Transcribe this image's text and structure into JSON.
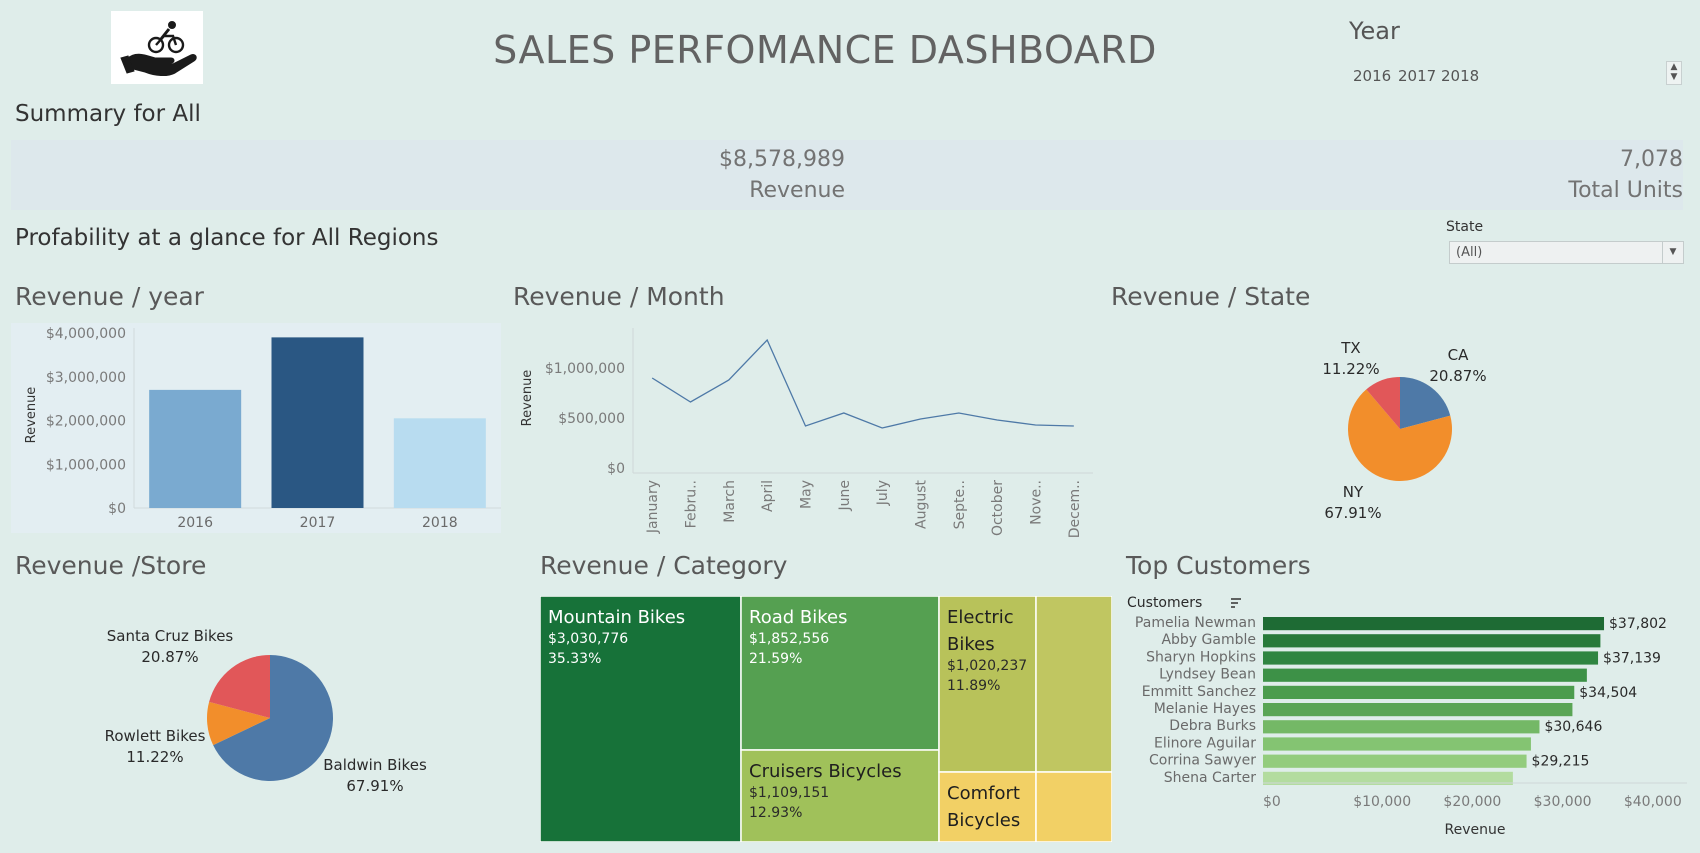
{
  "header": {
    "title": "SALES PERFOMANCE DASHBOARD",
    "year_filter": {
      "label": "Year",
      "options": [
        "2016",
        "2017",
        "2018"
      ]
    }
  },
  "summary": {
    "title": "Summary for  All",
    "revenue_value": "$8,578,989",
    "revenue_label": "Revenue",
    "units_value": "7,078",
    "units_label": "Total Units"
  },
  "profitability": {
    "title": "Profability at a glance for All Regions",
    "state_filter": {
      "label": "State",
      "value": "(All)"
    }
  },
  "colors": {
    "background": "#dfedea",
    "blue_dark": "#2a5783",
    "blue_mid": "#7aaad0",
    "blue_light": "#b8dcf0",
    "pie_blue": "#4e79a7",
    "pie_orange": "#f28e2b",
    "pie_red": "#e15759"
  },
  "chart_data": [
    {
      "id": "revenue-year",
      "type": "bar",
      "title": "Revenue / year",
      "ylabel": "Revenue",
      "categories": [
        "2016",
        "2017",
        "2018"
      ],
      "values": [
        2700000,
        3900000,
        2050000
      ],
      "ylim": [
        0,
        4000000
      ],
      "yticks": [
        0,
        1000000,
        2000000,
        3000000,
        4000000
      ],
      "ytick_labels": [
        "$0",
        "$1,000,000",
        "$2,000,000",
        "$3,000,000",
        "$4,000,000"
      ],
      "colors": [
        "#7aaad0",
        "#2a5783",
        "#b8dcf0"
      ]
    },
    {
      "id": "revenue-month",
      "type": "line",
      "title": "Revenue / Month",
      "ylabel": "Revenue",
      "categories": [
        "January",
        "Febru..",
        "March",
        "April",
        "May",
        "June",
        "July",
        "August",
        "Septe..",
        "October",
        "Nove..",
        "Decem.."
      ],
      "values": [
        900000,
        660000,
        880000,
        1280000,
        420000,
        550000,
        400000,
        490000,
        550000,
        480000,
        430000,
        420000
      ],
      "ylim": [
        -50000,
        1400000
      ],
      "yticks": [
        0,
        500000,
        1000000
      ],
      "ytick_labels": [
        "$0",
        "$500,000",
        "$1,000,000"
      ],
      "color": "#4e79a7"
    },
    {
      "id": "revenue-state",
      "type": "pie",
      "title": "Revenue / State",
      "slices": [
        {
          "label": "CA",
          "pct": "20.87%",
          "value": 20.87,
          "color": "#4e79a7"
        },
        {
          "label": "NY",
          "pct": "67.91%",
          "value": 67.91,
          "color": "#f28e2b"
        },
        {
          "label": "TX",
          "pct": "11.22%",
          "value": 11.22,
          "color": "#e15759"
        }
      ]
    },
    {
      "id": "revenue-store",
      "type": "pie",
      "title": "Revenue /Store",
      "slices": [
        {
          "label": "Baldwin Bikes",
          "pct": "67.91%",
          "value": 67.91,
          "color": "#4e79a7"
        },
        {
          "label": "Rowlett Bikes",
          "pct": "11.22%",
          "value": 11.22,
          "color": "#f28e2b"
        },
        {
          "label": "Santa Cruz Bikes",
          "pct": "20.87%",
          "value": 20.87,
          "color": "#e15759"
        }
      ]
    },
    {
      "id": "revenue-category",
      "type": "treemap",
      "title": "Revenue / Category",
      "items": [
        {
          "name": "Mountain Bikes",
          "value": "$3,030,776",
          "pct": "35.33%",
          "color": "#177239"
        },
        {
          "name": "Road Bikes",
          "value": "$1,852,556",
          "pct": "21.59%",
          "color": "#55a051"
        },
        {
          "name": "Cruisers Bicycles",
          "value": "$1,109,151",
          "pct": "12.93%",
          "color": "#a0c15a"
        },
        {
          "name": "Electric Bikes",
          "value": "$1,020,237",
          "pct": "11.89%",
          "color": "#b8c25a"
        },
        {
          "name": "Comfort Bicycles",
          "value": "",
          "pct": "",
          "color": "#f2d065"
        },
        {
          "name": "",
          "value": "",
          "pct": "",
          "color": "#c0c661"
        },
        {
          "name": "",
          "value": "",
          "pct": "",
          "color": "#f2d065"
        }
      ]
    },
    {
      "id": "top-customers",
      "type": "bar",
      "orientation": "horizontal",
      "title": "Top Customers",
      "category_header": "Customers",
      "xlabel": "Revenue",
      "xlim": [
        0,
        47000
      ],
      "xticks": [
        0,
        10000,
        20000,
        30000,
        40000
      ],
      "xtick_labels": [
        "$0",
        "$10,000",
        "$20,000",
        "$30,000",
        "$40,000"
      ],
      "categories": [
        "Pamelia Newman",
        "Abby Gamble",
        "Sharyn Hopkins",
        "Lyndsey Bean",
        "Emmitt Sanchez",
        "Melanie Hayes",
        "Debra Burks",
        "Elinore Aguilar",
        "Corrina Sawyer",
        "Shena Carter"
      ],
      "values": [
        37802,
        37400,
        37139,
        35900,
        34504,
        34300,
        30646,
        29700,
        29215,
        27700
      ],
      "data_labels": [
        "$37,802",
        "",
        "$37,139",
        "",
        "$34,504",
        "",
        "$30,646",
        "",
        "$29,215",
        ""
      ],
      "colors": [
        "#1e6b34",
        "#287a3a",
        "#2f8541",
        "#3d9147",
        "#4b9c4d",
        "#5aa555",
        "#74b866",
        "#84c472",
        "#93cc7d",
        "#b3dc9f"
      ]
    }
  ]
}
